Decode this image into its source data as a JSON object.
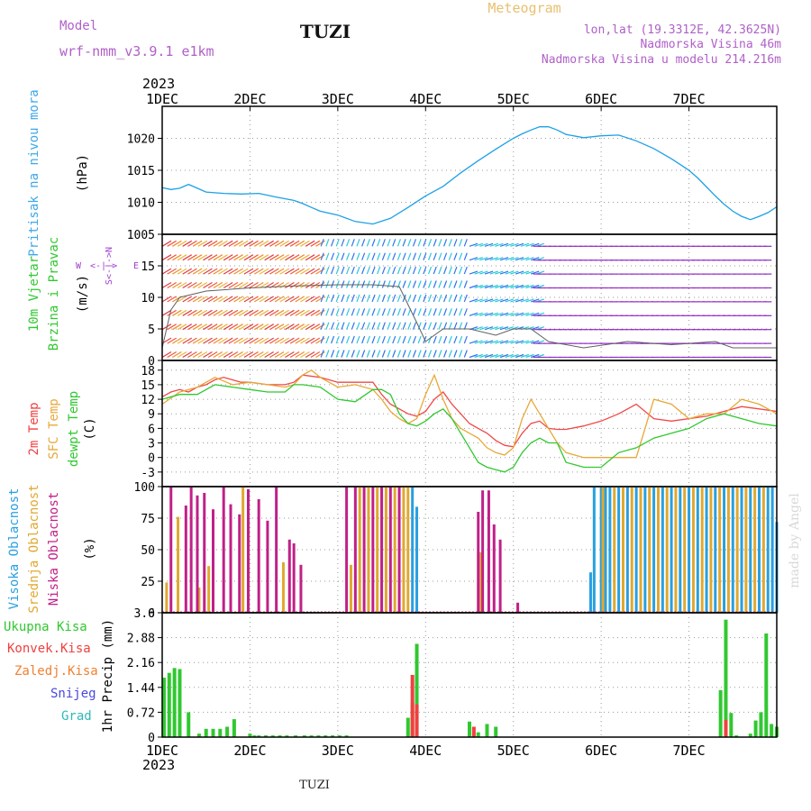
{
  "header": {
    "model_label": "Model",
    "model_name": "wrf-nmm_v3.9.1 e1km",
    "station": "TUZI",
    "title": "Meteogram",
    "lonlat": "lon,lat (19.3312E, 42.3625N)",
    "altitude": "Nadmorska Visina 46m",
    "model_altitude": "Nadmorska Visina u modelu 214.216m",
    "year": "2023"
  },
  "labels": {
    "pressure": "Pritisak na nivou mora",
    "pressure_unit": "(hPa)",
    "wind_1": "10m Vjetar",
    "wind_2": "Brzina i Pravac",
    "wind_unit": "(m/s)",
    "compass_w": "W",
    "compass_arrow": "<-|->",
    "compass_e": "E",
    "compass_ns": "S<-|->N",
    "temp_2m": "2m Temp",
    "temp_sfc": "SFC Temp",
    "temp_dewpt": "dewpt Temp",
    "temp_unit": "(C)",
    "cloud_high": "Visoka Oblacnost",
    "cloud_mid": "Srednja Oblacnost",
    "cloud_low": "Niska Oblacnost",
    "cloud_unit": "(%)",
    "precip_total": "Ukupna Kisa",
    "precip_conv": "Konvek.Kisa",
    "precip_freezing": "Zaledj.Kisa",
    "precip_snow": "Snijeg",
    "precip_hail": "Grad",
    "precip_unit": "1hr Precip (mm)",
    "credit": "made by Angel"
  },
  "footer": {
    "year": "2023",
    "station": "TUZI"
  },
  "chart_data": [
    {
      "type": "line",
      "id": "pressure",
      "x_ticks": [
        "1DEC",
        "2DEC",
        "3DEC",
        "4DEC",
        "5DEC",
        "6DEC",
        "7DEC"
      ],
      "ylim": [
        1005,
        1025
      ],
      "y_ticks": [
        1005,
        1010,
        1015,
        1020
      ],
      "series": [
        {
          "color": "#1ea0e6",
          "x": [
            0,
            0.1,
            0.2,
            0.3,
            0.4,
            0.5,
            0.7,
            0.9,
            1.1,
            1.3,
            1.5,
            1.6,
            1.7,
            1.8,
            2.0,
            2.2,
            2.4,
            2.6,
            2.8,
            3.0,
            3.2,
            3.4,
            3.6,
            3.8,
            4.0,
            4.1,
            4.2,
            4.3,
            4.4,
            4.5,
            4.6,
            4.8,
            5.0,
            5.2,
            5.4,
            5.6,
            5.8,
            6.0,
            6.1,
            6.2,
            6.3,
            6.4,
            6.5,
            6.6,
            6.7,
            6.8,
            6.9,
            7.0
          ],
          "values": [
            1012.3,
            1012,
            1012.2,
            1012.8,
            1012.2,
            1011.6,
            1011.4,
            1011.3,
            1011.4,
            1010.8,
            1010.3,
            1009.8,
            1009.2,
            1008.6,
            1008,
            1007,
            1006.6,
            1007.5,
            1009.2,
            1011,
            1012.5,
            1014.6,
            1016.5,
            1018.3,
            1020,
            1020.7,
            1021.3,
            1021.8,
            1021.8,
            1021.3,
            1020.6,
            1020.1,
            1020.4,
            1020.5,
            1019.6,
            1018.4,
            1016.8,
            1015,
            1013.8,
            1012.4,
            1011,
            1009.7,
            1008.6,
            1007.8,
            1007.3,
            1007.8,
            1008.4,
            1009.3
          ]
        }
      ]
    },
    {
      "type": "line",
      "id": "wind",
      "ylim": [
        0,
        20
      ],
      "y_ticks": [
        0,
        5,
        10,
        15
      ],
      "series": [
        {
          "color": "#606060",
          "x": [
            0,
            0.1,
            0.2,
            0.5,
            1,
            1.5,
            2,
            2.4,
            2.7,
            2.9,
            3,
            3.2,
            3.5,
            3.8,
            4,
            4.2,
            4.4,
            4.8,
            5.3,
            5.8,
            6.3,
            6.5,
            6.7,
            7
          ],
          "values": [
            2,
            8,
            10,
            11,
            11.5,
            11.8,
            12,
            12,
            11.7,
            6,
            3,
            5,
            5,
            4,
            5,
            5,
            3,
            2,
            3,
            2.5,
            3,
            2,
            2,
            2
          ]
        }
      ]
    },
    {
      "type": "line",
      "id": "temperature",
      "ylim": [
        -6,
        20
      ],
      "y_ticks": [
        -3,
        0,
        3,
        6,
        9,
        12,
        15,
        18
      ],
      "series": [
        {
          "name": "2m Temp",
          "color": "#f04848",
          "x": [
            0,
            0.1,
            0.2,
            0.3,
            0.4,
            0.5,
            0.6,
            0.7,
            0.8,
            0.9,
            1.0,
            1.2,
            1.4,
            1.5,
            1.6,
            1.8,
            2.0,
            2.2,
            2.4,
            2.5,
            2.6,
            2.7,
            2.8,
            2.9,
            3.0,
            3.1,
            3.2,
            3.3,
            3.4,
            3.5,
            3.6,
            3.7,
            3.8,
            3.9,
            4.0,
            4.1,
            4.2,
            4.3,
            4.4,
            4.5,
            4.6,
            4.8,
            5.0,
            5.2,
            5.4,
            5.6,
            5.8,
            6.0,
            6.2,
            6.4,
            6.6,
            6.8,
            7.0
          ],
          "values": [
            12.5,
            13.5,
            14,
            13.5,
            14.5,
            15,
            16,
            16.5,
            16,
            15.5,
            15.5,
            15,
            15,
            15.5,
            17,
            16.5,
            15.5,
            15.5,
            15.5,
            13,
            11,
            10,
            9,
            8.5,
            9.5,
            12,
            13.5,
            11,
            9,
            7,
            6,
            5,
            3.5,
            2.5,
            2.2,
            5,
            7,
            7.5,
            6,
            5.8,
            5.8,
            6.5,
            7.5,
            9,
            11,
            8,
            7.5,
            8,
            8.5,
            9.5,
            10.5,
            10,
            9.5
          ]
        },
        {
          "name": "SFC Temp",
          "color": "#e8a838",
          "x": [
            0,
            0.2,
            0.4,
            0.6,
            0.8,
            1.0,
            1.2,
            1.4,
            1.5,
            1.6,
            1.7,
            1.8,
            2.0,
            2.2,
            2.4,
            2.5,
            2.6,
            2.7,
            2.8,
            2.9,
            3.0,
            3.1,
            3.2,
            3.3,
            3.4,
            3.5,
            3.6,
            3.7,
            3.8,
            3.9,
            4.0,
            4.1,
            4.2,
            4.3,
            4.4,
            4.5,
            4.6,
            4.8,
            5.0,
            5.2,
            5.4,
            5.6,
            5.8,
            6.0,
            6.2,
            6.4,
            6.6,
            6.8,
            7.0
          ],
          "values": [
            11,
            13.5,
            14.5,
            16.5,
            15,
            15.5,
            15,
            14.5,
            15,
            17,
            18,
            16.5,
            14.5,
            15,
            14,
            12,
            9.5,
            8,
            7,
            8,
            13,
            17,
            12,
            8,
            6,
            5,
            4,
            2,
            1,
            0.5,
            2,
            8,
            12,
            9,
            6,
            3,
            1,
            0,
            0,
            0,
            0,
            12,
            11,
            8,
            9,
            9,
            12,
            11,
            9
          ]
        },
        {
          "name": "dewpt Temp",
          "color": "#30c830",
          "x": [
            0,
            0.2,
            0.4,
            0.6,
            0.8,
            1.0,
            1.2,
            1.4,
            1.5,
            1.6,
            1.8,
            2.0,
            2.2,
            2.4,
            2.5,
            2.6,
            2.7,
            2.8,
            2.9,
            3.0,
            3.1,
            3.2,
            3.3,
            3.4,
            3.5,
            3.6,
            3.7,
            3.8,
            3.9,
            4.0,
            4.1,
            4.2,
            4.3,
            4.4,
            4.5,
            4.6,
            4.8,
            5.0,
            5.2,
            5.4,
            5.6,
            5.8,
            6.0,
            6.2,
            6.4,
            6.6,
            6.8,
            7.0
          ],
          "values": [
            12,
            13,
            13,
            15,
            14.5,
            14,
            13.5,
            13.5,
            15,
            15,
            14.5,
            12,
            11.5,
            14,
            14,
            13,
            9,
            7,
            6.5,
            7.5,
            9,
            10,
            8,
            5,
            2,
            -1,
            -2,
            -2.5,
            -3,
            -2,
            1,
            3,
            4,
            3,
            3,
            -1,
            -2,
            -2,
            1,
            2,
            4,
            5,
            6,
            8,
            9,
            8,
            7,
            6.5
          ]
        }
      ]
    },
    {
      "type": "bar",
      "id": "cloud_cover",
      "ylim": [
        0,
        100
      ],
      "y_ticks": [
        0,
        25,
        50,
        75,
        100
      ],
      "series": [
        {
          "name": "Visoka Oblacnost",
          "color": "#28a0e0",
          "x": [
            2.85,
            2.9,
            4.88,
            4.92,
            5.0,
            5.05,
            5.1,
            5.2,
            5.3,
            5.4,
            5.5,
            5.6,
            5.7,
            5.8,
            5.9,
            6.0,
            6.1,
            6.2,
            6.3,
            6.4,
            6.5,
            6.6,
            6.7,
            6.8,
            6.9,
            6.95,
            7.0
          ],
          "values": [
            100,
            84,
            32,
            100,
            100,
            100,
            100,
            100,
            100,
            100,
            100,
            100,
            100,
            100,
            100,
            100,
            100,
            100,
            100,
            100,
            100,
            100,
            100,
            100,
            100,
            100,
            72
          ]
        },
        {
          "name": "Srednja Oblacnost",
          "color": "#e0a830",
          "x": [
            0.05,
            0.18,
            0.42,
            0.53,
            0.92,
            1.38,
            2.15,
            2.25,
            2.35,
            2.45,
            2.55,
            2.65,
            2.75,
            2.8,
            3.63,
            5.02,
            5.15,
            5.25,
            5.35,
            5.45,
            5.55,
            5.65,
            5.75,
            5.85,
            5.95,
            6.05,
            6.15,
            6.25,
            6.35,
            6.45,
            6.55,
            6.65,
            6.75,
            6.85
          ],
          "values": [
            24,
            76,
            20,
            37,
            100,
            40,
            38,
            100,
            100,
            100,
            100,
            100,
            100,
            100,
            48,
            100,
            100,
            100,
            100,
            100,
            100,
            100,
            100,
            100,
            100,
            100,
            100,
            100,
            100,
            100,
            100,
            100,
            100,
            100
          ]
        },
        {
          "name": "Niska Oblacnost",
          "color": "#c02088",
          "x": [
            0.1,
            0.27,
            0.33,
            0.4,
            0.48,
            0.58,
            0.7,
            0.78,
            0.88,
            0.98,
            1.1,
            1.2,
            1.3,
            1.45,
            1.5,
            1.58,
            2.1,
            2.2,
            2.3,
            2.4,
            2.5,
            2.6,
            2.7,
            3.6,
            3.65,
            3.72,
            3.78,
            3.85,
            4.05,
            4.3
          ],
          "values": [
            100,
            85,
            100,
            93,
            95,
            82,
            100,
            86,
            78,
            98,
            90,
            73,
            100,
            58,
            55,
            38,
            100,
            100,
            100,
            100,
            100,
            100,
            100,
            80,
            97,
            97,
            70,
            58,
            8,
            0
          ]
        }
      ]
    },
    {
      "type": "bar",
      "id": "precipitation",
      "ylim": [
        0,
        3.6
      ],
      "y_ticks": [
        0,
        0.72,
        1.44,
        2.16,
        2.88,
        3.6
      ],
      "series": [
        {
          "name": "Ukupna Kisa",
          "color": "#30c830",
          "x": [
            0.02,
            0.08,
            0.14,
            0.2,
            0.3,
            0.42,
            0.5,
            0.58,
            0.66,
            0.74,
            0.82,
            1.0,
            1.05,
            1.1,
            1.18,
            1.26,
            1.34,
            1.42,
            1.52,
            1.62,
            1.7,
            1.78,
            1.86,
            1.94,
            2.02,
            2.1,
            2.8,
            2.85,
            2.9,
            3.5,
            3.6,
            3.7,
            3.8
          ],
          "values": [
            1.72,
            1.86,
            2.0,
            1.97,
            0.72,
            0.1,
            0.24,
            0.24,
            0.24,
            0.3,
            0.52,
            0.1,
            0.05,
            0.05,
            0.05,
            0.05,
            0.05,
            0.05,
            0.05,
            0.05,
            0.05,
            0.05,
            0.05,
            0.05,
            0.05,
            0.05,
            0.56,
            1.0,
            2.7,
            0.45,
            0.14,
            0.38,
            0.3
          ],
          "x2": [
            6.36,
            6.42,
            6.48,
            6.54,
            6.7,
            6.76,
            6.82,
            6.88,
            6.94,
            7.0
          ],
          "values2": [
            1.36,
            3.4,
            0.7,
            0.05,
            0.1,
            0.48,
            0.72,
            3.0,
            0.38,
            0.3
          ]
        },
        {
          "name": "Konvek.Kisa",
          "color": "#f04040",
          "x": [
            2.85,
            2.9,
            3.55,
            6.42
          ],
          "values": [
            1.8,
            0.95,
            0.3,
            0.5
          ]
        }
      ]
    }
  ]
}
